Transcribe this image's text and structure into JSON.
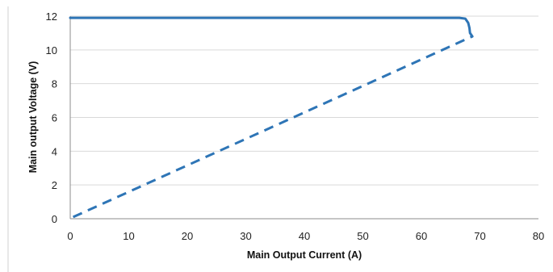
{
  "chart_data": {
    "type": "line",
    "title": "",
    "xlabel": "Main  Output Current (A)",
    "ylabel": "Main  output Voltage (V)",
    "xlim": [
      0,
      80
    ],
    "ylim": [
      0,
      12
    ],
    "x_ticks": [
      0,
      10,
      20,
      30,
      40,
      50,
      60,
      70,
      80
    ],
    "y_ticks": [
      0,
      2,
      4,
      6,
      8,
      10,
      12
    ],
    "grid": "horizontal",
    "legend": "none",
    "series": [
      {
        "style": "solid",
        "color": "#2e75b6",
        "points": [
          [
            0,
            11.9
          ],
          [
            66.5,
            11.9
          ],
          [
            67.5,
            11.85
          ],
          [
            68.0,
            11.6
          ],
          [
            68.2,
            11.3
          ],
          [
            68.3,
            11.0
          ],
          [
            68.7,
            10.8
          ]
        ]
      },
      {
        "style": "dashed",
        "color": "#2e75b6",
        "points": [
          [
            0.5,
            0.1
          ],
          [
            68.7,
            10.8
          ]
        ]
      }
    ]
  }
}
